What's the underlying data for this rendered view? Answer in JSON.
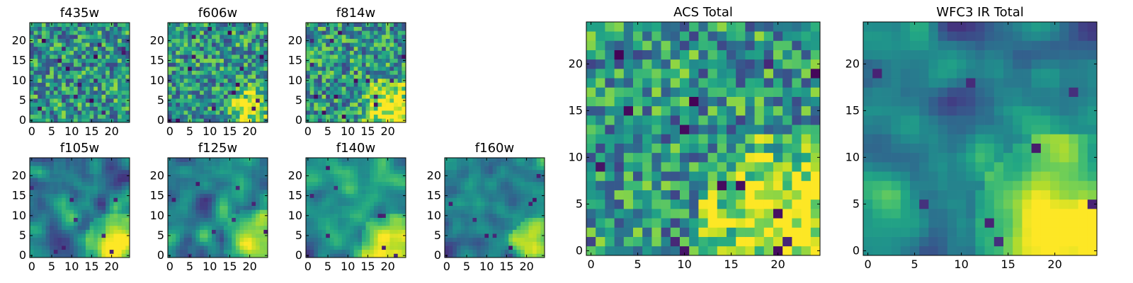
{
  "chart_data": [
    {
      "id": "f435w",
      "type": "heatmap",
      "title": "f435w",
      "grid_size": 25,
      "xlim": [
        -0.5,
        24.5
      ],
      "ylim": [
        -0.5,
        24.5
      ],
      "xticks": [
        0,
        5,
        10,
        15,
        20
      ],
      "yticks": [
        0,
        5,
        10,
        15,
        20
      ],
      "xlabel": "",
      "ylabel": "",
      "colormap": "viridis",
      "texture": "noisy",
      "bright_regions": [],
      "seed": 11
    },
    {
      "id": "f606w",
      "type": "heatmap",
      "title": "f606w",
      "grid_size": 25,
      "xlim": [
        -0.5,
        24.5
      ],
      "ylim": [
        -0.5,
        24.5
      ],
      "xticks": [
        0,
        5,
        10,
        15,
        20
      ],
      "yticks": [
        0,
        5,
        10,
        15,
        20
      ],
      "xlabel": "",
      "ylabel": "",
      "colormap": "viridis",
      "texture": "noisy",
      "bright_regions": [
        {
          "x": 20,
          "y": 3,
          "radius": 4,
          "strength": 0.45
        }
      ],
      "seed": 22
    },
    {
      "id": "f814w",
      "type": "heatmap",
      "title": "f814w",
      "grid_size": 25,
      "xlim": [
        -0.5,
        24.5
      ],
      "ylim": [
        -0.5,
        24.5
      ],
      "xticks": [
        0,
        5,
        10,
        15,
        20
      ],
      "yticks": [
        0,
        5,
        10,
        15,
        20
      ],
      "xlabel": "",
      "ylabel": "",
      "colormap": "viridis",
      "texture": "noisy",
      "bright_regions": [
        {
          "x": 21,
          "y": 3,
          "radius": 5,
          "strength": 0.55
        }
      ],
      "seed": 33
    },
    {
      "id": "f105w",
      "type": "heatmap",
      "title": "f105w",
      "grid_size": 25,
      "xlim": [
        -0.5,
        24.5
      ],
      "ylim": [
        -0.5,
        24.5
      ],
      "xticks": [
        0,
        5,
        10,
        15,
        20
      ],
      "yticks": [
        0,
        5,
        10,
        15,
        20
      ],
      "xlabel": "",
      "ylabel": "",
      "colormap": "viridis",
      "texture": "smooth",
      "bright_regions": [
        {
          "x": 21,
          "y": 3,
          "radius": 5,
          "strength": 0.55
        }
      ],
      "seed": 44
    },
    {
      "id": "f125w",
      "type": "heatmap",
      "title": "f125w",
      "grid_size": 25,
      "xlim": [
        -0.5,
        24.5
      ],
      "ylim": [
        -0.5,
        24.5
      ],
      "xticks": [
        0,
        5,
        10,
        15,
        20
      ],
      "yticks": [
        0,
        5,
        10,
        15,
        20
      ],
      "xlabel": "",
      "ylabel": "",
      "colormap": "viridis",
      "texture": "smooth",
      "bright_regions": [
        {
          "x": 21,
          "y": 4,
          "radius": 5,
          "strength": 0.5
        }
      ],
      "seed": 55
    },
    {
      "id": "f140w",
      "type": "heatmap",
      "title": "f140w",
      "grid_size": 25,
      "xlim": [
        -0.5,
        24.5
      ],
      "ylim": [
        -0.5,
        24.5
      ],
      "xticks": [
        0,
        5,
        10,
        15,
        20
      ],
      "yticks": [
        0,
        5,
        10,
        15,
        20
      ],
      "xlabel": "",
      "ylabel": "",
      "colormap": "viridis",
      "texture": "smooth",
      "bright_regions": [
        {
          "x": 21,
          "y": 3,
          "radius": 5,
          "strength": 0.55
        }
      ],
      "seed": 66
    },
    {
      "id": "f160w",
      "type": "heatmap",
      "title": "f160w",
      "grid_size": 25,
      "xlim": [
        -0.5,
        24.5
      ],
      "ylim": [
        -0.5,
        24.5
      ],
      "xticks": [
        0,
        5,
        10,
        15,
        20
      ],
      "yticks": [
        0,
        5,
        10,
        15,
        20
      ],
      "xlabel": "",
      "ylabel": "",
      "colormap": "viridis",
      "texture": "smooth",
      "bright_regions": [
        {
          "x": 22,
          "y": 3,
          "radius": 4,
          "strength": 0.6
        }
      ],
      "seed": 77
    },
    {
      "id": "acs-total",
      "type": "heatmap",
      "title": "ACS Total",
      "grid_size": 25,
      "xlim": [
        -0.5,
        24.5
      ],
      "ylim": [
        -0.5,
        24.5
      ],
      "xticks": [
        0,
        5,
        10,
        15,
        20
      ],
      "yticks": [
        0,
        5,
        10,
        15,
        20
      ],
      "xlabel": "",
      "ylabel": "",
      "colormap": "viridis",
      "texture": "noisy",
      "bright_regions": [
        {
          "x": 21,
          "y": 3,
          "radius": 6,
          "strength": 0.55
        }
      ],
      "seed": 88
    },
    {
      "id": "wfc3-ir-total",
      "type": "heatmap",
      "title": "WFC3 IR Total",
      "grid_size": 25,
      "xlim": [
        -0.5,
        24.5
      ],
      "ylim": [
        -0.5,
        24.5
      ],
      "xticks": [
        0,
        5,
        10,
        15,
        20
      ],
      "yticks": [
        0,
        5,
        10,
        15,
        20
      ],
      "xlabel": "",
      "ylabel": "",
      "colormap": "viridis",
      "texture": "smooth",
      "bright_regions": [
        {
          "x": 21,
          "y": 3,
          "radius": 6,
          "strength": 0.65
        }
      ],
      "seed": 99
    }
  ]
}
